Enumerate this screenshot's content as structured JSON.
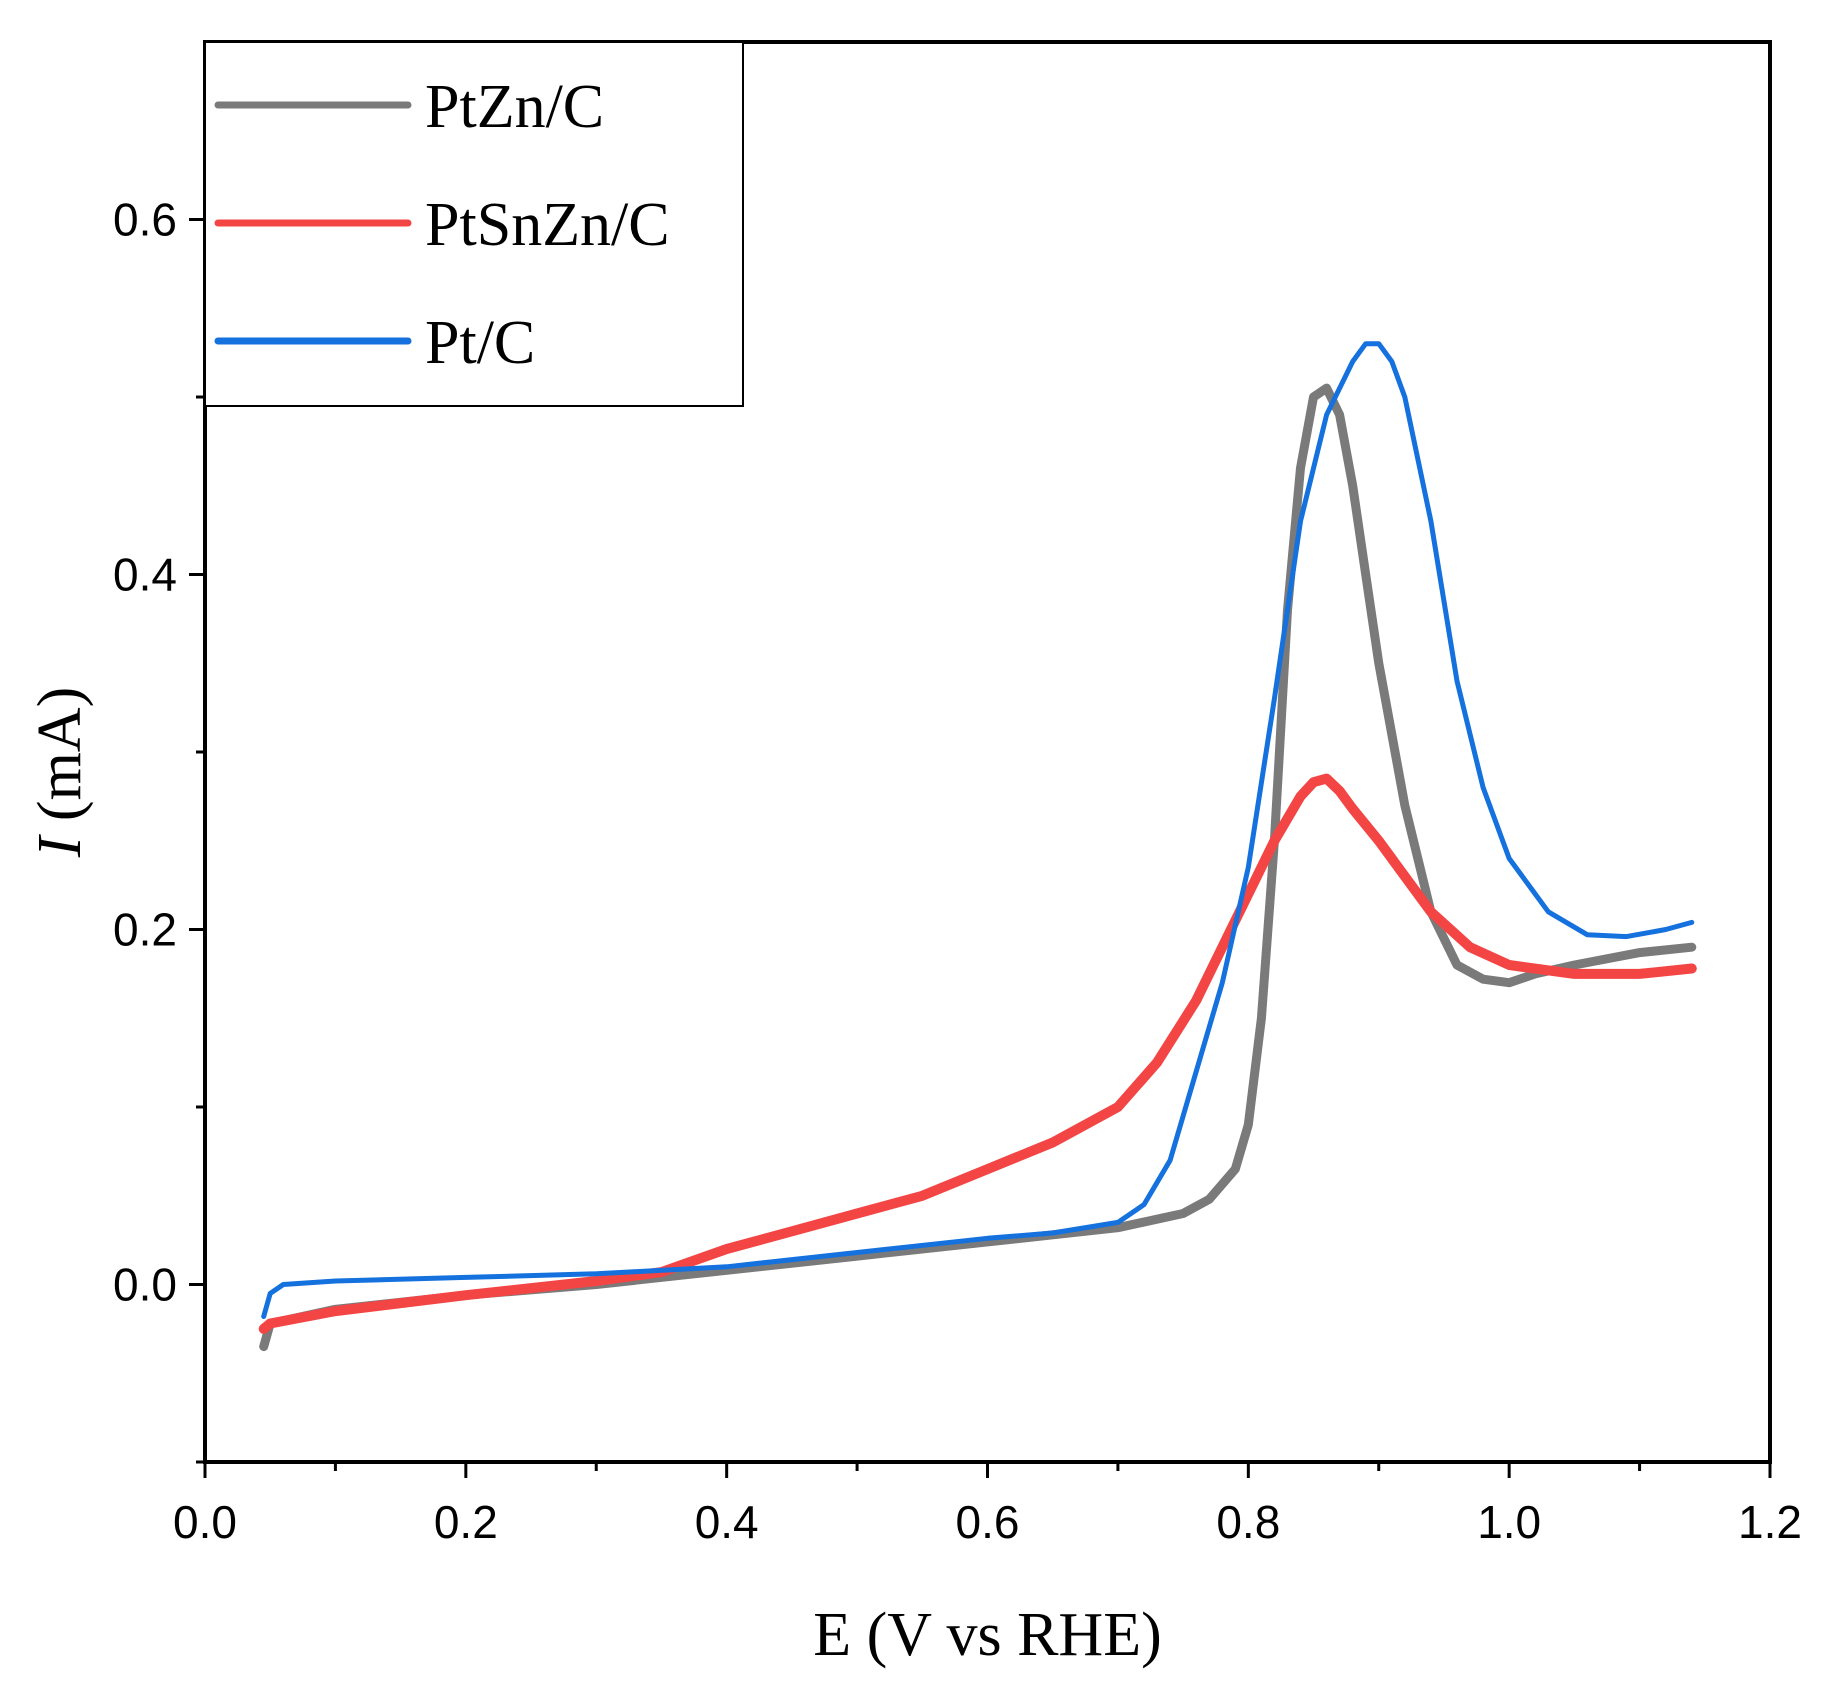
{
  "chart_data": {
    "type": "line",
    "title": "",
    "xlabel": "E (V vs RHE)",
    "ylabel": {
      "symbol": "I",
      "unit": " (mA)"
    },
    "xlim": [
      0.0,
      1.2
    ],
    "ylim": [
      -0.1,
      0.7
    ],
    "xticks": [
      0.0,
      0.2,
      0.4,
      0.6,
      0.8,
      1.0,
      1.2
    ],
    "xtick_labels": [
      "0.0",
      "0.2",
      "0.4",
      "0.6",
      "0.8",
      "1.0",
      "1.2"
    ],
    "xminor": [
      0.1,
      0.3,
      0.5,
      0.7,
      0.9,
      1.1
    ],
    "yticks": [
      0.0,
      0.2,
      0.4,
      0.6
    ],
    "ytick_labels": [
      "0.0",
      "0.2",
      "0.4",
      "0.6"
    ],
    "yminor": [
      -0.1,
      0.1,
      0.3,
      0.5
    ],
    "grid": false,
    "legend_position": "top-left",
    "series": [
      {
        "name": "PtZn/C",
        "color": "#7a7a7a",
        "x": [
          0.045,
          0.05,
          0.1,
          0.2,
          0.3,
          0.4,
          0.5,
          0.6,
          0.7,
          0.75,
          0.77,
          0.79,
          0.8,
          0.81,
          0.82,
          0.83,
          0.84,
          0.85,
          0.86,
          0.87,
          0.88,
          0.89,
          0.9,
          0.92,
          0.94,
          0.96,
          0.98,
          1.0,
          1.02,
          1.05,
          1.1,
          1.14
        ],
        "y": [
          -0.035,
          -0.022,
          -0.014,
          -0.006,
          0.0,
          0.008,
          0.016,
          0.024,
          0.032,
          0.04,
          0.048,
          0.065,
          0.09,
          0.15,
          0.25,
          0.38,
          0.46,
          0.5,
          0.505,
          0.49,
          0.45,
          0.4,
          0.35,
          0.27,
          0.21,
          0.18,
          0.172,
          0.17,
          0.175,
          0.18,
          0.187,
          0.19
        ]
      },
      {
        "name": "PtSnZn/C",
        "color": "#f44545",
        "x": [
          0.045,
          0.05,
          0.1,
          0.2,
          0.3,
          0.35,
          0.4,
          0.45,
          0.5,
          0.55,
          0.6,
          0.65,
          0.7,
          0.73,
          0.76,
          0.79,
          0.82,
          0.84,
          0.85,
          0.86,
          0.87,
          0.88,
          0.9,
          0.92,
          0.94,
          0.97,
          1.0,
          1.05,
          1.1,
          1.14
        ],
        "y": [
          -0.025,
          -0.022,
          -0.015,
          -0.006,
          0.002,
          0.007,
          0.02,
          0.03,
          0.04,
          0.05,
          0.065,
          0.08,
          0.1,
          0.125,
          0.16,
          0.205,
          0.25,
          0.275,
          0.283,
          0.285,
          0.278,
          0.268,
          0.25,
          0.23,
          0.21,
          0.19,
          0.18,
          0.175,
          0.175,
          0.178
        ]
      },
      {
        "name": "Pt/C",
        "color": "#1471dd",
        "x": [
          0.045,
          0.05,
          0.06,
          0.1,
          0.2,
          0.3,
          0.4,
          0.5,
          0.6,
          0.65,
          0.7,
          0.72,
          0.74,
          0.76,
          0.78,
          0.8,
          0.82,
          0.84,
          0.86,
          0.88,
          0.89,
          0.9,
          0.91,
          0.92,
          0.94,
          0.96,
          0.98,
          1.0,
          1.03,
          1.06,
          1.09,
          1.12,
          1.14
        ],
        "y": [
          -0.018,
          -0.005,
          0.0,
          0.002,
          0.004,
          0.006,
          0.01,
          0.018,
          0.026,
          0.029,
          0.035,
          0.045,
          0.07,
          0.12,
          0.17,
          0.235,
          0.33,
          0.43,
          0.49,
          0.52,
          0.53,
          0.53,
          0.52,
          0.5,
          0.43,
          0.34,
          0.28,
          0.24,
          0.21,
          0.197,
          0.196,
          0.2,
          0.204
        ]
      }
    ]
  }
}
